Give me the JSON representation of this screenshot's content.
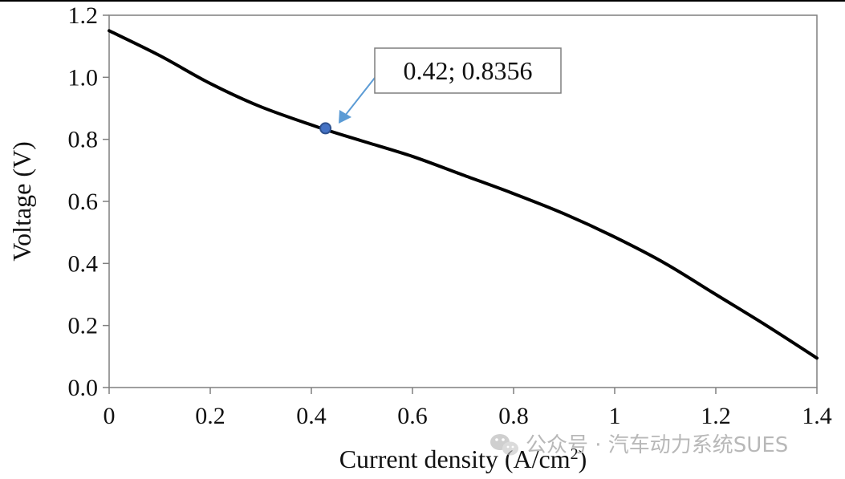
{
  "chart_data": {
    "type": "line",
    "title": "",
    "xlabel": "Current density (A/cm",
    "xlabel_sup": "2",
    "xlabel_close": ")",
    "ylabel": "Voltage (V)",
    "xlim": [
      0,
      1.4
    ],
    "ylim": [
      0,
      1.2
    ],
    "x_ticks": [
      "0",
      "0.2",
      "0.4",
      "0.6",
      "0.8",
      "1",
      "1.2",
      "1.4"
    ],
    "y_ticks": [
      "0.0",
      "0.2",
      "0.4",
      "0.6",
      "0.8",
      "1.0",
      "1.2"
    ],
    "grid": false,
    "series": [
      {
        "color": "#000000",
        "x": [
          0,
          0.1,
          0.2,
          0.3,
          0.42,
          0.5,
          0.6,
          0.7,
          0.8,
          0.9,
          1.0,
          1.1,
          1.2,
          1.3,
          1.4
        ],
        "y": [
          1.15,
          1.07,
          0.98,
          0.905,
          0.8356,
          0.795,
          0.745,
          0.685,
          0.625,
          0.56,
          0.485,
          0.4,
          0.3,
          0.2,
          0.095
        ]
      }
    ],
    "annotation": {
      "text": "0.42; 0.8356",
      "x": 0.42,
      "y": 0.8356,
      "marker_color": "#4472c4",
      "arrow_color": "#5b9bd5"
    }
  },
  "watermark": {
    "icon": "wechat-icon",
    "text": "公众号 · 汽车动力系统SUES"
  }
}
